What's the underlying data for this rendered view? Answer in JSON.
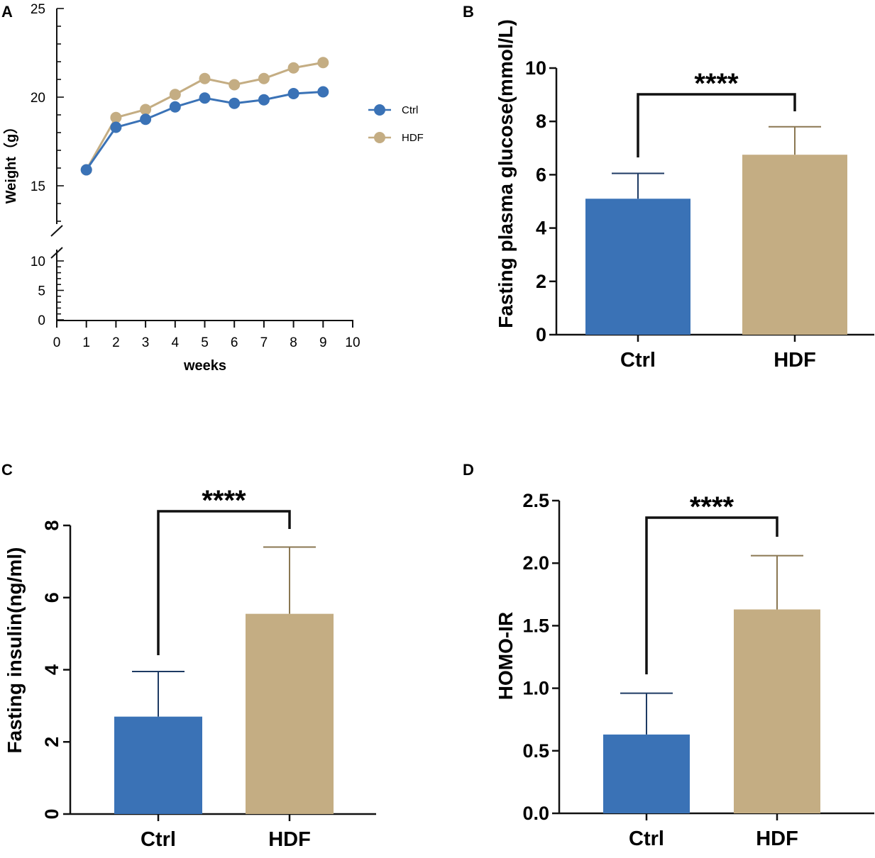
{
  "colors": {
    "ctrl": "#3a72b6",
    "hdf": "#c4ad83",
    "axis": "#111111"
  },
  "chart_data": [
    {
      "panel": "A",
      "type": "line",
      "title": "",
      "xlabel": "weeks",
      "ylabel": "Weight（g）",
      "xlim": [
        0,
        10
      ],
      "x_ticks": [
        0,
        1,
        2,
        3,
        4,
        5,
        6,
        7,
        8,
        9,
        10
      ],
      "y_ticks_upper": [
        15,
        20,
        25
      ],
      "y_ticks_lower": [
        0,
        5,
        10
      ],
      "axis_break": [
        10,
        13
      ],
      "ylim": [
        0,
        25
      ],
      "x": [
        1,
        2,
        3,
        4,
        5,
        6,
        7,
        8,
        9
      ],
      "series": [
        {
          "name": "Ctrl",
          "color": "#3a72b6",
          "values": [
            15.9,
            18.3,
            18.75,
            19.45,
            19.95,
            19.65,
            19.85,
            20.2,
            20.3
          ]
        },
        {
          "name": "HDF",
          "color": "#c4ad83",
          "values": [
            15.9,
            18.85,
            19.3,
            20.15,
            21.05,
            20.7,
            21.05,
            21.65,
            21.95
          ]
        }
      ],
      "legend": "right",
      "grid": false
    },
    {
      "panel": "B",
      "type": "bar",
      "title": "",
      "xlabel": "",
      "ylabel": "Fasting plasma glucose(mmol/L)",
      "categories": [
        "Ctrl",
        "HDF"
      ],
      "values": [
        5.1,
        6.75
      ],
      "errors": [
        0.95,
        1.05
      ],
      "ylim": [
        0,
        10
      ],
      "y_ticks": [
        0,
        2,
        4,
        6,
        8,
        10
      ],
      "significance": "****"
    },
    {
      "panel": "C",
      "type": "bar",
      "title": "",
      "xlabel": "",
      "ylabel": "Fasting insulin(ng/ml)",
      "categories": [
        "Ctrl",
        "HDF"
      ],
      "values": [
        2.7,
        5.55
      ],
      "errors": [
        1.25,
        1.85
      ],
      "ylim": [
        0,
        8
      ],
      "y_ticks": [
        0,
        2,
        4,
        6,
        8
      ],
      "significance": "****"
    },
    {
      "panel": "D",
      "type": "bar",
      "title": "",
      "xlabel": "",
      "ylabel": "HOMO-IR",
      "categories": [
        "Ctrl",
        "HDF"
      ],
      "values": [
        0.63,
        1.63
      ],
      "errors": [
        0.33,
        0.43
      ],
      "ylim": [
        0,
        2.5
      ],
      "y_ticks": [
        "0.0",
        "0.5",
        "1.0",
        "1.5",
        "2.0",
        "2.5"
      ],
      "significance": "****"
    }
  ]
}
